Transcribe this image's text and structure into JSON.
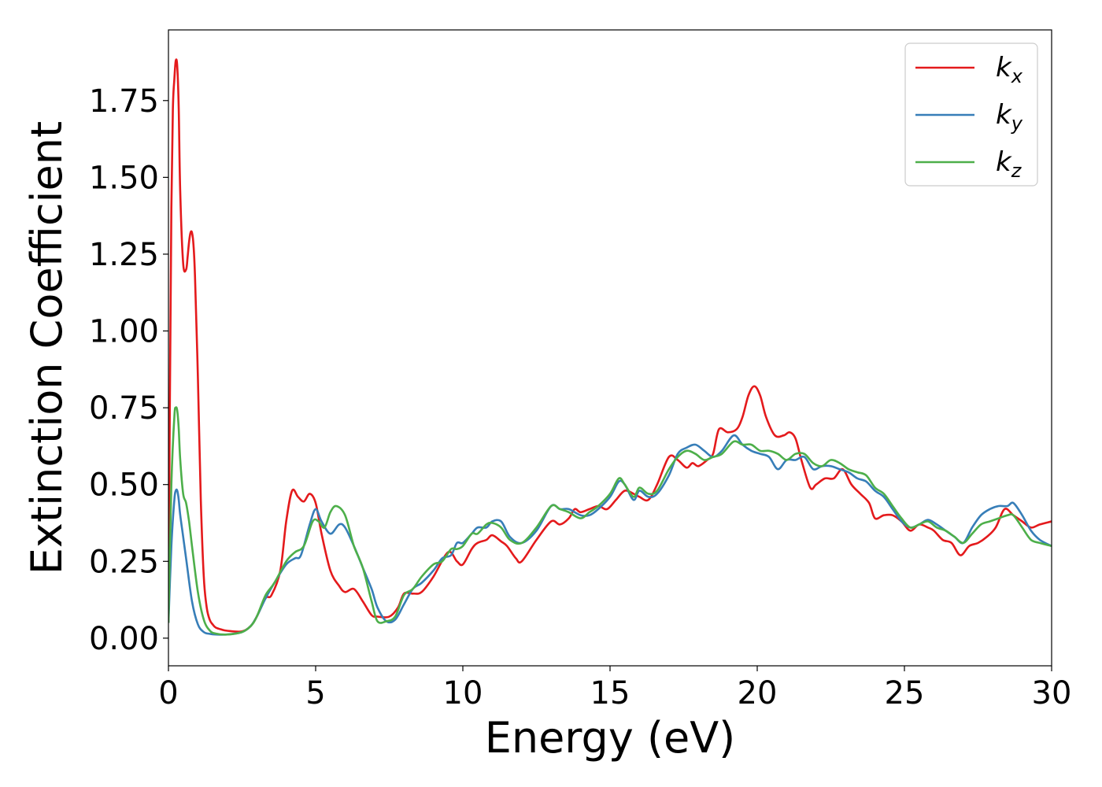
{
  "chart_data": {
    "type": "line",
    "xlabel": "Energy (eV)",
    "ylabel": "Extinction Coefficient",
    "xlim": [
      0,
      30
    ],
    "ylim": [
      -0.09,
      1.98
    ],
    "xticks": [
      0,
      5,
      10,
      15,
      20,
      25,
      30
    ],
    "yticks": [
      0.0,
      0.25,
      0.5,
      0.75,
      1.0,
      1.25,
      1.5,
      1.75
    ],
    "grid": false,
    "legend": "top-right",
    "series": [
      {
        "name": "k_x",
        "label_base": "k",
        "label_sub": "x",
        "color": "#e41a1c",
        "x": [
          0.0,
          0.05,
          0.1,
          0.15,
          0.2,
          0.25,
          0.3,
          0.35,
          0.4,
          0.5,
          0.6,
          0.65,
          0.7,
          0.75,
          0.8,
          0.85,
          0.9,
          1.0,
          1.1,
          1.2,
          1.3,
          1.4,
          1.5,
          1.6,
          1.8,
          2.0,
          2.5,
          2.8,
          3.0,
          3.3,
          3.5,
          3.8,
          4.0,
          4.2,
          4.4,
          4.6,
          4.8,
          5.0,
          5.2,
          5.5,
          5.8,
          6.0,
          6.3,
          6.6,
          6.9,
          7.1,
          7.5,
          7.8,
          8.0,
          8.3,
          8.6,
          9.0,
          9.5,
          9.8,
          10.0,
          10.3,
          10.5,
          10.8,
          11.0,
          11.3,
          11.5,
          11.8,
          12.0,
          12.5,
          13.0,
          13.3,
          13.6,
          13.8,
          14.0,
          14.3,
          14.6,
          14.9,
          15.2,
          15.5,
          15.8,
          16.0,
          16.3,
          16.6,
          17.0,
          17.3,
          17.6,
          17.8,
          18.0,
          18.3,
          18.5,
          18.7,
          19.0,
          19.3,
          19.5,
          19.7,
          19.9,
          20.1,
          20.3,
          20.6,
          20.9,
          21.1,
          21.3,
          21.5,
          21.8,
          22.0,
          22.3,
          22.6,
          22.9,
          23.2,
          23.5,
          23.8,
          24.0,
          24.3,
          24.6,
          24.9,
          25.2,
          25.5,
          25.8,
          26.0,
          26.3,
          26.6,
          26.9,
          27.2,
          27.5,
          27.8,
          28.1,
          28.4,
          28.7,
          29.0,
          29.3,
          29.6,
          30.0
        ],
        "y": [
          0.05,
          0.8,
          1.4,
          1.72,
          1.82,
          1.88,
          1.86,
          1.72,
          1.45,
          1.22,
          1.2,
          1.24,
          1.29,
          1.32,
          1.32,
          1.28,
          1.18,
          0.85,
          0.45,
          0.2,
          0.1,
          0.06,
          0.045,
          0.035,
          0.028,
          0.024,
          0.022,
          0.04,
          0.07,
          0.13,
          0.14,
          0.22,
          0.38,
          0.48,
          0.46,
          0.445,
          0.47,
          0.44,
          0.34,
          0.22,
          0.17,
          0.15,
          0.16,
          0.12,
          0.075,
          0.07,
          0.07,
          0.1,
          0.145,
          0.145,
          0.15,
          0.2,
          0.28,
          0.25,
          0.24,
          0.29,
          0.31,
          0.32,
          0.335,
          0.315,
          0.3,
          0.26,
          0.25,
          0.32,
          0.38,
          0.37,
          0.39,
          0.42,
          0.41,
          0.42,
          0.43,
          0.42,
          0.45,
          0.48,
          0.47,
          0.46,
          0.45,
          0.5,
          0.59,
          0.58,
          0.555,
          0.57,
          0.56,
          0.58,
          0.6,
          0.68,
          0.67,
          0.68,
          0.72,
          0.79,
          0.82,
          0.79,
          0.72,
          0.66,
          0.66,
          0.67,
          0.65,
          0.58,
          0.49,
          0.5,
          0.52,
          0.52,
          0.55,
          0.5,
          0.47,
          0.44,
          0.39,
          0.4,
          0.4,
          0.38,
          0.35,
          0.37,
          0.36,
          0.35,
          0.32,
          0.31,
          0.27,
          0.3,
          0.31,
          0.33,
          0.36,
          0.42,
          0.4,
          0.38,
          0.36,
          0.37,
          0.38
        ]
      },
      {
        "name": "k_y",
        "label_base": "k",
        "label_sub": "y",
        "color": "#377eb8",
        "x": [
          0.0,
          0.1,
          0.2,
          0.25,
          0.3,
          0.35,
          0.4,
          0.5,
          0.6,
          0.8,
          1.0,
          1.2,
          1.4,
          1.6,
          2.0,
          2.5,
          2.8,
          3.0,
          3.3,
          3.6,
          4.0,
          4.3,
          4.5,
          4.8,
          5.0,
          5.2,
          5.5,
          5.8,
          6.0,
          6.3,
          6.6,
          6.9,
          7.1,
          7.4,
          7.7,
          8.0,
          8.3,
          8.6,
          9.0,
          9.3,
          9.6,
          9.8,
          10.0,
          10.3,
          10.5,
          10.8,
          11.0,
          11.3,
          11.6,
          12.0,
          12.5,
          13.0,
          13.3,
          13.6,
          14.0,
          14.3,
          14.6,
          15.0,
          15.3,
          15.5,
          15.8,
          16.0,
          16.3,
          16.6,
          17.0,
          17.3,
          17.6,
          17.9,
          18.2,
          18.5,
          18.8,
          19.2,
          19.5,
          19.8,
          20.1,
          20.4,
          20.7,
          21.0,
          21.3,
          21.6,
          21.9,
          22.2,
          22.5,
          22.8,
          23.1,
          23.4,
          23.7,
          24.0,
          24.3,
          24.6,
          24.9,
          25.2,
          25.5,
          25.8,
          26.1,
          26.4,
          26.7,
          27.0,
          27.3,
          27.6,
          27.9,
          28.2,
          28.5,
          28.7,
          29.0,
          29.3,
          29.6,
          30.0
        ],
        "y": [
          0.05,
          0.3,
          0.45,
          0.48,
          0.48,
          0.45,
          0.4,
          0.33,
          0.26,
          0.12,
          0.045,
          0.02,
          0.014,
          0.012,
          0.012,
          0.02,
          0.04,
          0.07,
          0.13,
          0.18,
          0.24,
          0.26,
          0.27,
          0.37,
          0.42,
          0.38,
          0.34,
          0.37,
          0.36,
          0.3,
          0.23,
          0.16,
          0.1,
          0.055,
          0.06,
          0.11,
          0.16,
          0.18,
          0.22,
          0.26,
          0.27,
          0.31,
          0.31,
          0.34,
          0.36,
          0.36,
          0.38,
          0.38,
          0.33,
          0.31,
          0.35,
          0.43,
          0.42,
          0.42,
          0.4,
          0.4,
          0.42,
          0.46,
          0.51,
          0.5,
          0.45,
          0.48,
          0.46,
          0.47,
          0.53,
          0.6,
          0.62,
          0.63,
          0.61,
          0.59,
          0.61,
          0.66,
          0.63,
          0.61,
          0.6,
          0.59,
          0.55,
          0.58,
          0.58,
          0.59,
          0.55,
          0.56,
          0.56,
          0.55,
          0.54,
          0.52,
          0.51,
          0.48,
          0.46,
          0.42,
          0.38,
          0.36,
          0.37,
          0.385,
          0.37,
          0.35,
          0.33,
          0.31,
          0.36,
          0.4,
          0.42,
          0.43,
          0.43,
          0.44,
          0.4,
          0.35,
          0.32,
          0.3
        ]
      },
      {
        "name": "k_z",
        "label_base": "k",
        "label_sub": "z",
        "color": "#4daf4a",
        "x": [
          0.0,
          0.1,
          0.2,
          0.25,
          0.3,
          0.35,
          0.4,
          0.5,
          0.6,
          0.7,
          0.8,
          1.0,
          1.2,
          1.4,
          1.6,
          2.0,
          2.5,
          2.8,
          3.0,
          3.3,
          3.6,
          4.0,
          4.3,
          4.6,
          4.9,
          5.1,
          5.3,
          5.5,
          5.7,
          6.0,
          6.3,
          6.6,
          6.9,
          7.1,
          7.4,
          7.7,
          8.0,
          8.3,
          8.6,
          9.0,
          9.3,
          9.6,
          9.8,
          10.0,
          10.3,
          10.5,
          10.8,
          11.0,
          11.3,
          11.6,
          12.0,
          12.5,
          13.0,
          13.3,
          13.6,
          14.0,
          14.3,
          14.6,
          15.0,
          15.3,
          15.5,
          15.8,
          16.0,
          16.3,
          16.6,
          17.0,
          17.3,
          17.6,
          17.9,
          18.2,
          18.5,
          18.8,
          19.2,
          19.5,
          19.8,
          20.1,
          20.4,
          20.7,
          21.0,
          21.3,
          21.6,
          21.9,
          22.2,
          22.5,
          22.8,
          23.1,
          23.4,
          23.7,
          24.0,
          24.3,
          24.6,
          24.9,
          25.2,
          25.5,
          25.8,
          26.1,
          26.4,
          26.7,
          27.0,
          27.3,
          27.6,
          27.9,
          28.2,
          28.5,
          28.7,
          29.0,
          29.3,
          29.6,
          30.0
        ],
        "y": [
          0.05,
          0.5,
          0.72,
          0.75,
          0.74,
          0.68,
          0.58,
          0.47,
          0.44,
          0.38,
          0.3,
          0.15,
          0.06,
          0.025,
          0.015,
          0.012,
          0.02,
          0.04,
          0.07,
          0.14,
          0.18,
          0.25,
          0.28,
          0.3,
          0.38,
          0.38,
          0.36,
          0.41,
          0.43,
          0.4,
          0.3,
          0.23,
          0.12,
          0.055,
          0.055,
          0.07,
          0.14,
          0.16,
          0.2,
          0.24,
          0.25,
          0.29,
          0.29,
          0.3,
          0.34,
          0.34,
          0.37,
          0.375,
          0.36,
          0.32,
          0.31,
          0.36,
          0.43,
          0.42,
          0.41,
          0.39,
          0.41,
          0.43,
          0.47,
          0.52,
          0.5,
          0.46,
          0.49,
          0.47,
          0.48,
          0.55,
          0.59,
          0.61,
          0.6,
          0.58,
          0.59,
          0.6,
          0.64,
          0.63,
          0.63,
          0.61,
          0.61,
          0.6,
          0.58,
          0.6,
          0.6,
          0.57,
          0.56,
          0.58,
          0.57,
          0.55,
          0.54,
          0.53,
          0.49,
          0.47,
          0.43,
          0.39,
          0.36,
          0.37,
          0.38,
          0.36,
          0.35,
          0.33,
          0.31,
          0.34,
          0.37,
          0.38,
          0.39,
          0.4,
          0.4,
          0.36,
          0.32,
          0.31,
          0.3
        ]
      }
    ]
  }
}
